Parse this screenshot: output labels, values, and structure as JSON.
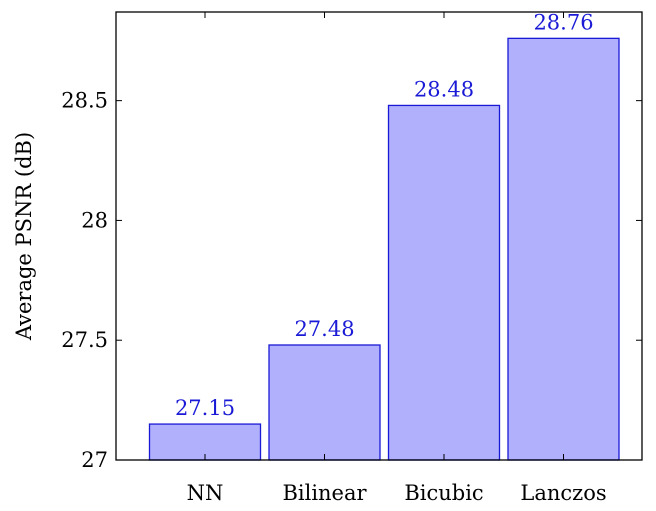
{
  "chart_data": {
    "type": "bar",
    "title": "",
    "xlabel": "",
    "ylabel": "Average PSNR (dB)",
    "categories": [
      "NN",
      "Bilinear",
      "Bicubic",
      "Lanczos"
    ],
    "values": [
      27.15,
      27.48,
      28.48,
      28.76
    ],
    "data_labels": [
      "27.15",
      "27.48",
      "28.48",
      "28.76"
    ],
    "ylim": [
      27,
      28.87
    ],
    "yticks": [
      27,
      27.5,
      28,
      28.5
    ],
    "ytick_labels": [
      "27",
      "27.5",
      "28",
      "28.5"
    ],
    "grid": false,
    "legend": "none",
    "colors": {
      "bar_fill": "#b0b0fd",
      "bar_stroke": "#1a1ad6",
      "data_label": "#1a1ad6",
      "axis": "#000000"
    }
  }
}
